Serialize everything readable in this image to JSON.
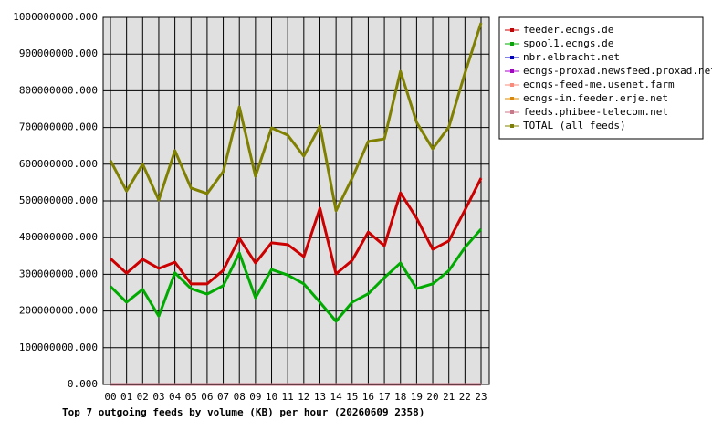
{
  "chart_data": {
    "type": "line",
    "title": "Top 7 outgoing feeds by volume (KB) per hour (20260609 2358)",
    "categories": [
      "00",
      "01",
      "02",
      "03",
      "04",
      "05",
      "06",
      "07",
      "08",
      "09",
      "10",
      "11",
      "12",
      "13",
      "14",
      "15",
      "16",
      "17",
      "18",
      "19",
      "20",
      "21",
      "22",
      "23"
    ],
    "ylim": [
      0,
      1000000000
    ],
    "yticks": [
      {
        "value": 0,
        "label": "0.000"
      },
      {
        "value": 100000000,
        "label": "100000000.000"
      },
      {
        "value": 200000000,
        "label": "200000000.000"
      },
      {
        "value": 300000000,
        "label": "300000000.000"
      },
      {
        "value": 400000000,
        "label": "400000000.000"
      },
      {
        "value": 500000000,
        "label": "500000000.000"
      },
      {
        "value": 600000000,
        "label": "600000000.000"
      },
      {
        "value": 700000000,
        "label": "700000000.000"
      },
      {
        "value": 800000000,
        "label": "800000000.000"
      },
      {
        "value": 900000000,
        "label": "900000000.000"
      },
      {
        "value": 1000000000,
        "label": "1000000000.000"
      }
    ],
    "grid": true,
    "legend": "outside-right",
    "series": [
      {
        "name": "feeder.ecngs.de",
        "color": "#cc0000",
        "values": [
          343000000,
          303000000,
          341000000,
          316000000,
          333000000,
          274000000,
          274000000,
          311000000,
          398000000,
          331000000,
          386000000,
          381000000,
          348000000,
          480000000,
          301000000,
          338000000,
          415000000,
          378000000,
          522000000,
          453000000,
          368000000,
          391000000,
          475000000,
          562000000
        ]
      },
      {
        "name": "spool1.ecngs.de",
        "color": "#00aa00",
        "values": [
          267000000,
          224000000,
          259000000,
          186000000,
          304000000,
          261000000,
          246000000,
          269000000,
          358000000,
          236000000,
          313000000,
          298000000,
          274000000,
          224000000,
          172000000,
          224000000,
          247000000,
          291000000,
          331000000,
          261000000,
          274000000,
          310000000,
          373000000,
          423000000
        ]
      },
      {
        "name": "nbr.elbracht.net",
        "color": "#0000cc",
        "values": [
          0,
          0,
          0,
          0,
          0,
          0,
          0,
          0,
          0,
          0,
          0,
          0,
          0,
          0,
          0,
          0,
          0,
          0,
          0,
          0,
          0,
          0,
          0,
          0
        ]
      },
      {
        "name": "ecngs-proxad.newsfeed.proxad.net",
        "color": "#aa00cc",
        "values": [
          0,
          0,
          0,
          0,
          0,
          0,
          0,
          0,
          0,
          0,
          0,
          0,
          0,
          0,
          0,
          0,
          0,
          0,
          0,
          0,
          0,
          0,
          0,
          0
        ]
      },
      {
        "name": "ecngs-feed-me.usenet.farm",
        "color": "#ff8877",
        "values": [
          0,
          0,
          0,
          0,
          0,
          0,
          0,
          0,
          0,
          0,
          0,
          0,
          0,
          0,
          0,
          0,
          0,
          0,
          0,
          0,
          0,
          0,
          0,
          0
        ]
      },
      {
        "name": "ecngs-in.feeder.erje.net",
        "color": "#dd8800",
        "values": [
          0,
          0,
          0,
          0,
          0,
          0,
          0,
          0,
          0,
          0,
          0,
          0,
          0,
          0,
          0,
          0,
          0,
          0,
          0,
          0,
          0,
          0,
          0,
          0
        ]
      },
      {
        "name": "feeds.phibee-telecom.net",
        "color": "#cc7788",
        "values": [
          0,
          0,
          0,
          0,
          0,
          0,
          0,
          0,
          0,
          0,
          0,
          0,
          0,
          0,
          0,
          0,
          0,
          0,
          0,
          0,
          0,
          0,
          0,
          0
        ]
      },
      {
        "name": "TOTAL (all feeds)",
        "color": "#808000",
        "values": [
          610000000,
          527000000,
          600000000,
          502000000,
          637000000,
          535000000,
          520000000,
          580000000,
          756000000,
          567000000,
          699000000,
          679000000,
          622000000,
          704000000,
          473000000,
          562000000,
          662000000,
          669000000,
          853000000,
          714000000,
          642000000,
          701000000,
          848000000,
          985000000
        ]
      }
    ]
  }
}
